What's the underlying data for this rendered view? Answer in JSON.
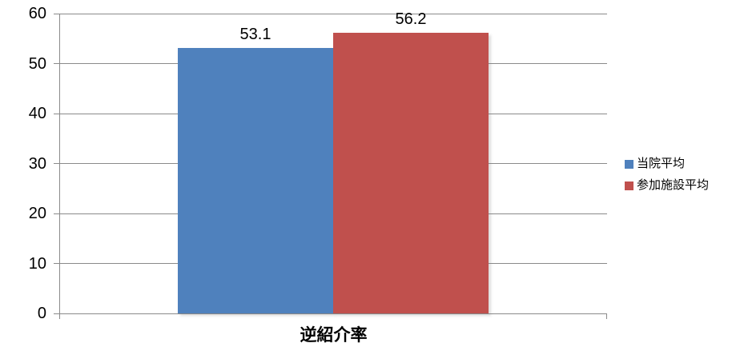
{
  "chart_data": {
    "type": "bar",
    "title": "",
    "xlabel": "",
    "ylabel": "",
    "categories": [
      "逆紹介率"
    ],
    "series": [
      {
        "name": "当院平均",
        "value": 53.1,
        "color": "#4F81BD"
      },
      {
        "name": "参加施設平均",
        "value": 56.2,
        "color": "#C0504D"
      }
    ],
    "ylim": [
      0,
      60
    ],
    "yticks": [
      0,
      10,
      20,
      30,
      40,
      50,
      60
    ],
    "grid": true,
    "legend_position": "right",
    "colors": {
      "gridline": "#8A8A8A",
      "axis": "#8A8A8A",
      "text": "#000000",
      "background": "#FFFFFF"
    }
  }
}
